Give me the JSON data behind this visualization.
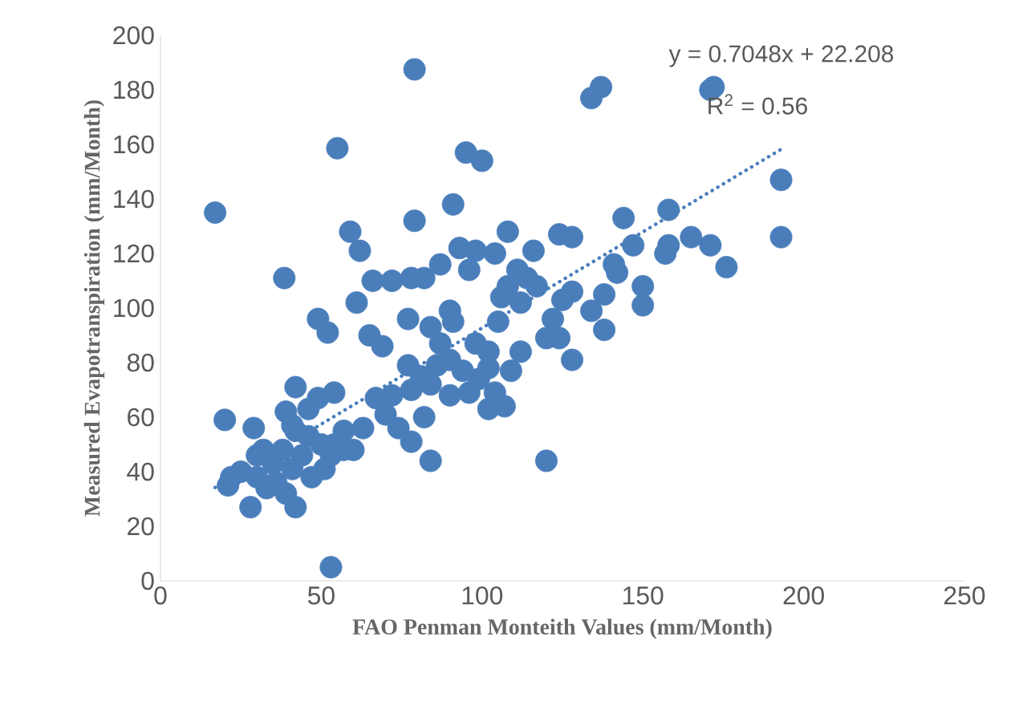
{
  "chart_data": {
    "type": "scatter",
    "xlabel": "FAO Penman Monteith Values (mm/Month)",
    "ylabel": "Measured Evapotranspiration  (mm/Month)",
    "annotations": [
      "y = 0.7048x + 22.208",
      "R$^{2}$ = 0.56"
    ],
    "xlim": [
      0,
      250
    ],
    "ylim": [
      0,
      200
    ],
    "xticks": [
      0,
      50,
      100,
      150,
      200,
      250
    ],
    "yticks": [
      0,
      20,
      40,
      60,
      80,
      100,
      120,
      140,
      160,
      180,
      200
    ],
    "grid": false,
    "series": [
      {
        "color": "#4a7ebb",
        "marker": "circle",
        "x": [
          17,
          79,
          134,
          137,
          171,
          172,
          55,
          95,
          100,
          91,
          79,
          144,
          158,
          193,
          193,
          59,
          62,
          108,
          165,
          171,
          176,
          157,
          158,
          147,
          128,
          124,
          116,
          38.5,
          66,
          72,
          78,
          82,
          87,
          93,
          98,
          104,
          96,
          141,
          142,
          138,
          134,
          138,
          150,
          150,
          128,
          125,
          111,
          114,
          117,
          112,
          108,
          106,
          122,
          120,
          124,
          128,
          61,
          49,
          52,
          77,
          90,
          91,
          65,
          69,
          84,
          87,
          98,
          102,
          105,
          112,
          109,
          77,
          81,
          86,
          90,
          94,
          99,
          102,
          78,
          84,
          90,
          96,
          102,
          107,
          104,
          82,
          78,
          74,
          70,
          67,
          72,
          84,
          120,
          53,
          42,
          54,
          49,
          46,
          39,
          41,
          20,
          29,
          63,
          57,
          60,
          21,
          22,
          25,
          28,
          42,
          30,
          32,
          35,
          38,
          41,
          44,
          47,
          51,
          53,
          50,
          46,
          36,
          39,
          33,
          30,
          54,
          57,
          42
        ],
        "values": [
          135,
          187.5,
          177,
          181,
          180,
          181,
          158.6,
          157,
          154,
          138,
          132,
          133,
          136,
          147,
          126,
          128,
          121,
          128,
          126,
          123,
          115,
          120,
          123,
          123,
          126,
          127,
          121,
          111,
          110,
          110,
          111,
          111,
          116,
          122,
          121,
          120,
          114,
          116,
          113,
          105,
          99,
          92,
          108,
          101,
          106,
          103,
          114,
          111,
          108,
          102,
          108,
          104,
          96,
          89,
          89,
          81,
          102,
          96,
          91,
          96,
          99,
          95,
          90,
          86,
          93,
          87,
          87,
          84,
          95,
          84,
          77,
          79,
          75,
          79,
          81,
          77,
          74,
          78,
          70,
          72,
          68,
          69,
          63,
          64,
          69,
          60,
          51,
          56,
          61,
          67,
          68,
          44,
          44,
          5,
          71,
          69,
          67,
          63,
          62,
          57,
          59,
          56,
          56,
          55,
          48,
          35,
          38,
          40,
          27,
          27,
          46,
          48,
          43,
          48,
          41,
          46,
          38,
          41,
          46,
          50,
          53,
          36,
          32,
          34,
          38,
          50,
          48,
          55
        ]
      },
      {
        "type": "line",
        "marker": "none",
        "line_style": "dotted",
        "color": "#4a7ebb",
        "x": [
          17,
          193
        ],
        "values": [
          34.2,
          158.2
        ]
      }
    ]
  }
}
